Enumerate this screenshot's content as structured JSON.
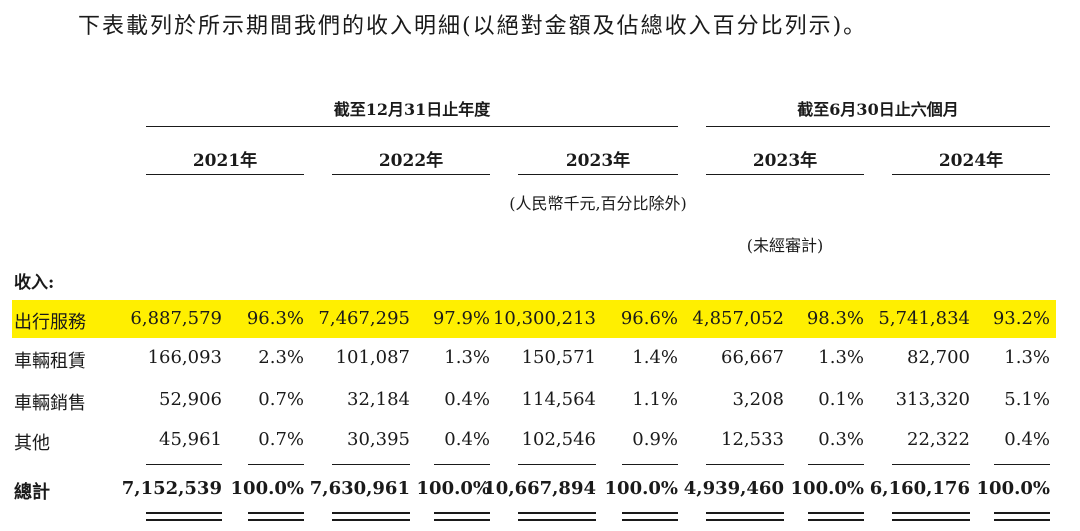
{
  "intro": "下表載列於所示期間我們的收入明細(以絕對金額及佔總收入百分比列示)。",
  "header": {
    "group_annual": "截至12月31日止年度",
    "group_interim": "截至6月30日止六個月",
    "years": [
      "2021年",
      "2022年",
      "2023年",
      "2023年",
      "2024年"
    ],
    "unit_note": "(人民幣千元,百分比除外)",
    "unaudited_note": "(未經審計)"
  },
  "revenue_label": "收入:",
  "rows": [
    {
      "label": "出行服務",
      "values": [
        "6,887,579",
        "96.3%",
        "7,467,295",
        "97.9%",
        "10,300,213",
        "96.6%",
        "4,857,052",
        "98.3%",
        "5,741,834",
        "93.2%"
      ]
    },
    {
      "label": "車輛租賃",
      "values": [
        "166,093",
        "2.3%",
        "101,087",
        "1.3%",
        "150,571",
        "1.4%",
        "66,667",
        "1.3%",
        "82,700",
        "1.3%"
      ]
    },
    {
      "label": "車輛銷售",
      "values": [
        "52,906",
        "0.7%",
        "32,184",
        "0.4%",
        "114,564",
        "1.1%",
        "3,208",
        "0.1%",
        "313,320",
        "5.1%"
      ]
    },
    {
      "label": "其他",
      "values": [
        "45,961",
        "0.7%",
        "30,395",
        "0.4%",
        "102,546",
        "0.9%",
        "12,533",
        "0.3%",
        "22,322",
        "0.4%"
      ]
    }
  ],
  "total": {
    "label": "總計",
    "values": [
      "7,152,539",
      "100.0%",
      "7,630,961",
      "100.0%",
      "10,667,894",
      "100.0%",
      "4,939,460",
      "100.0%",
      "6,160,176",
      "100.0%"
    ]
  },
  "colors": {
    "highlight": "#ffef00"
  }
}
